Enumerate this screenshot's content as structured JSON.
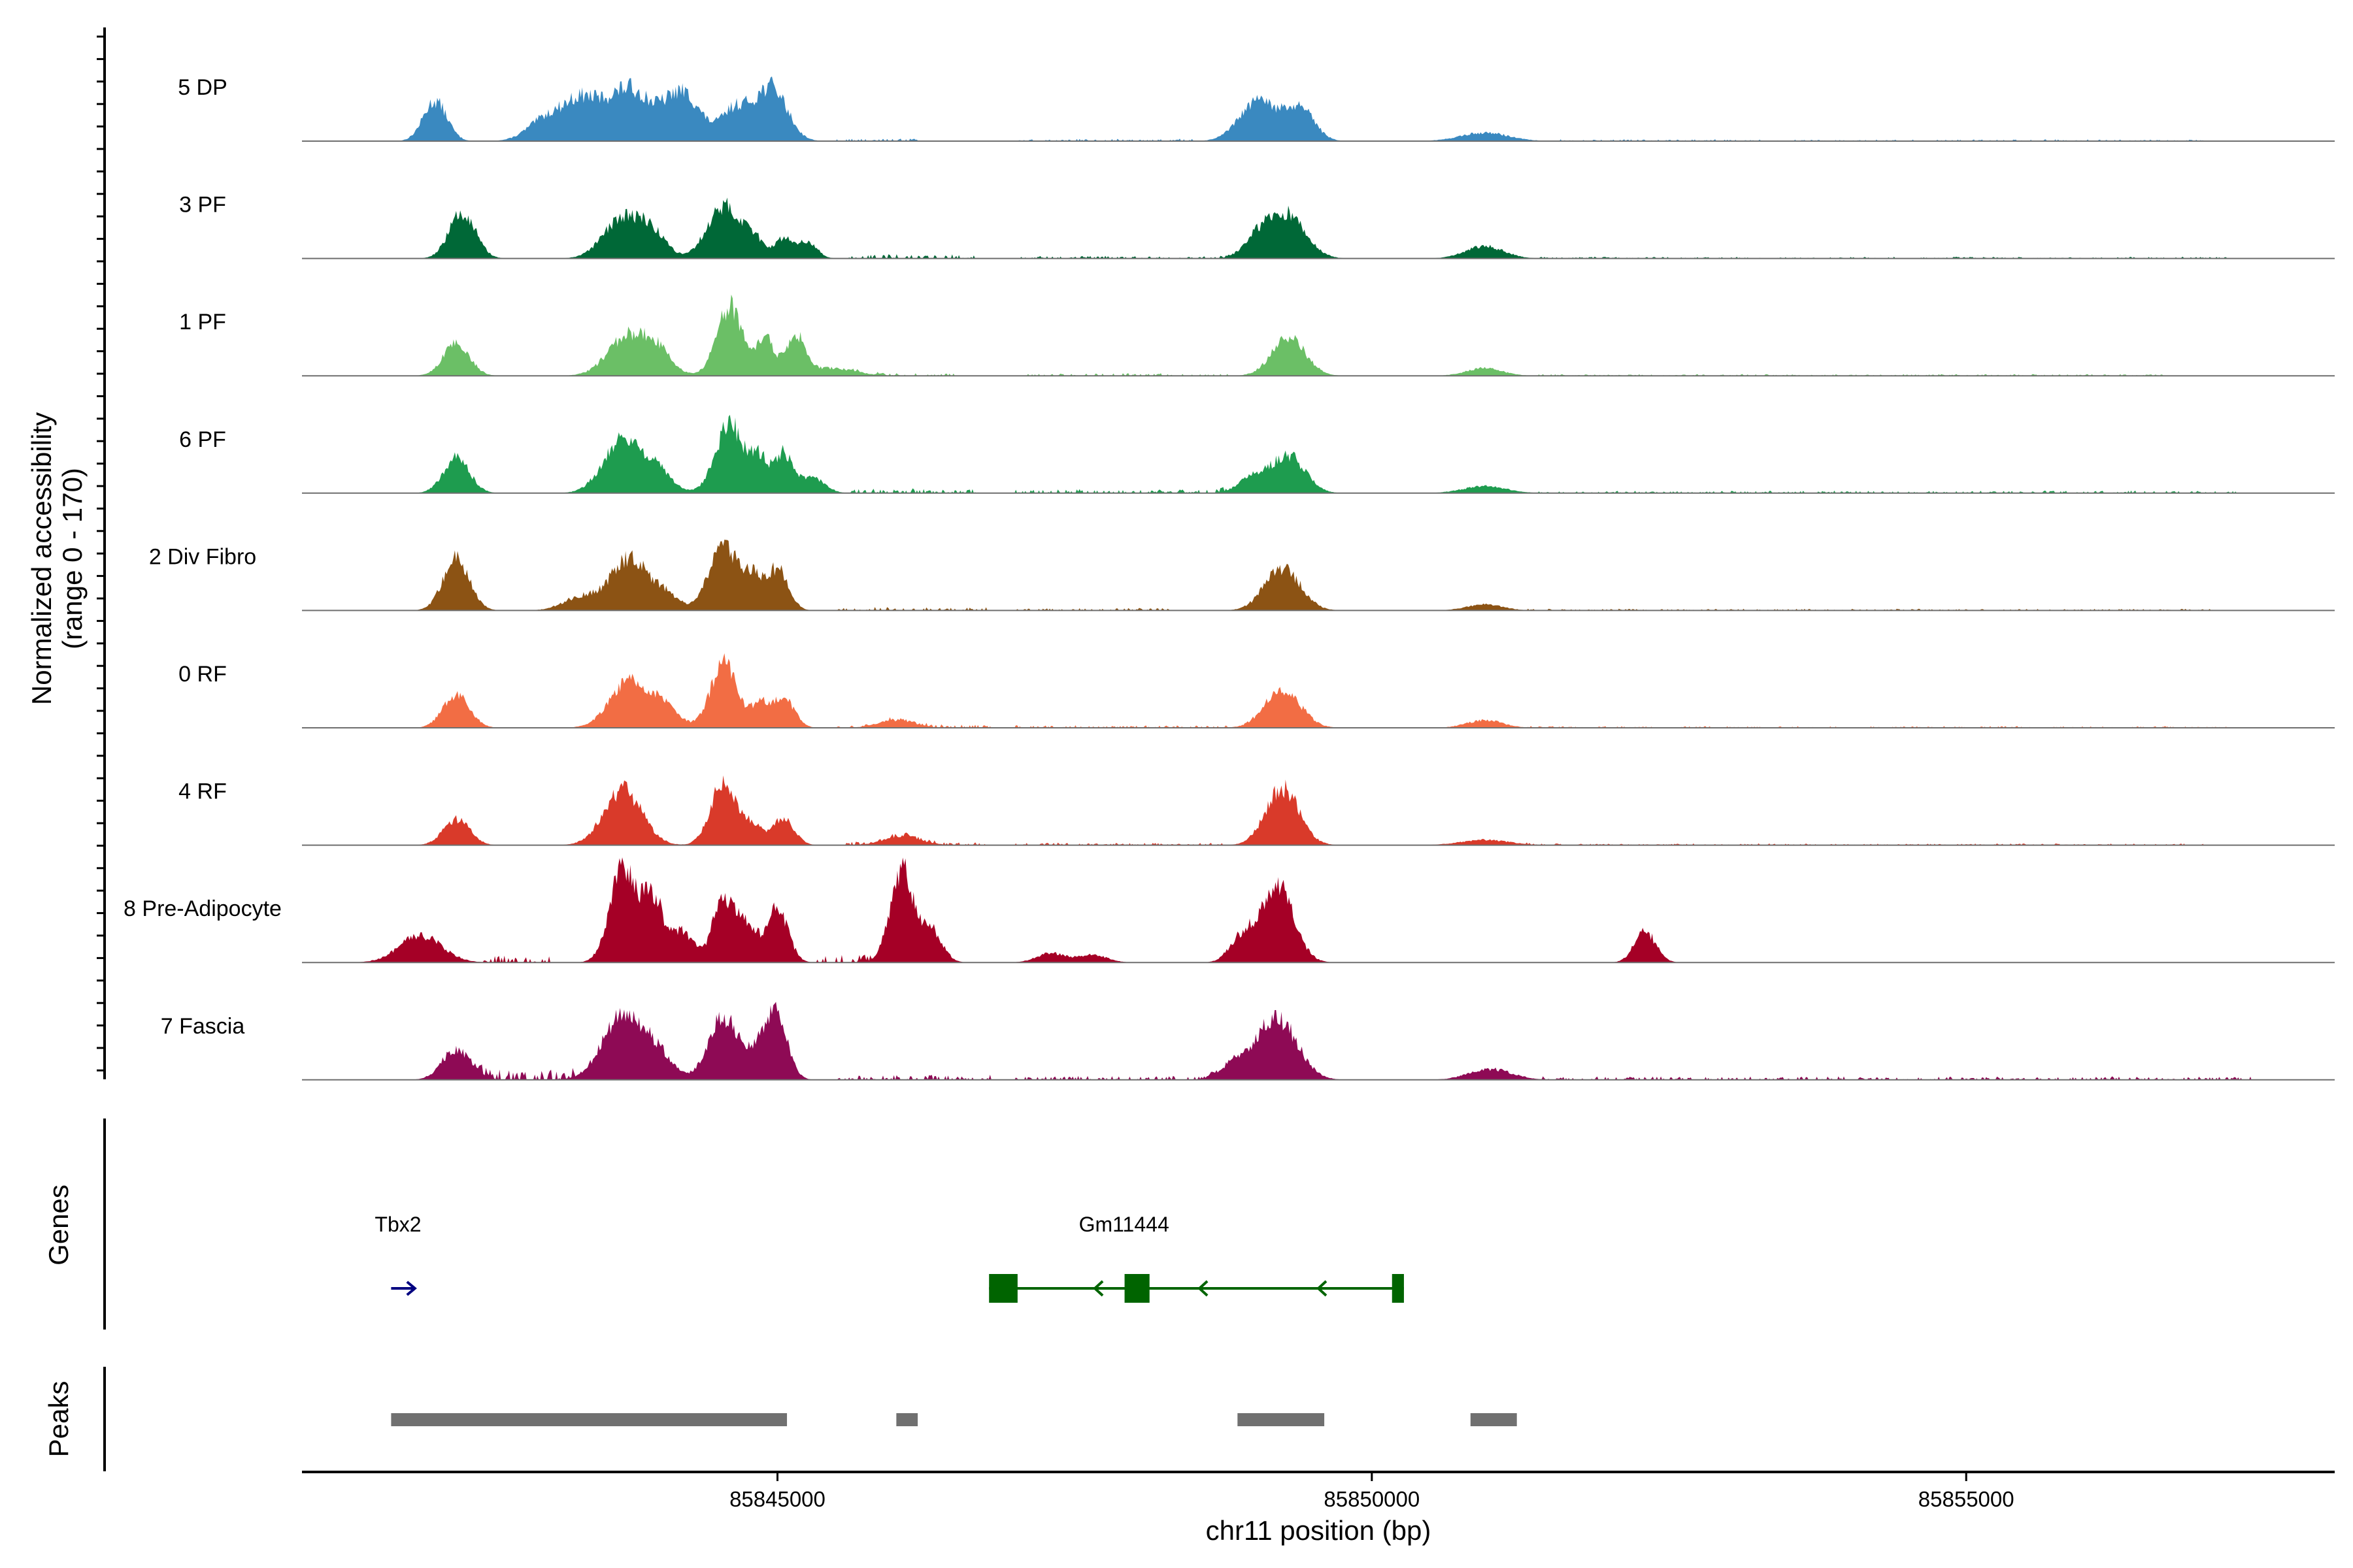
{
  "chart_data": {
    "type": "area",
    "title": "",
    "ylabel": "Normalized accessibility",
    "ylabel_sub": "(range 0 - 170)",
    "y_range": [
      0,
      170
    ],
    "xlabel": "chr11 position (bp)",
    "x_range": [
      85841000,
      85858100
    ],
    "x_ticks": [
      {
        "value": 85845000,
        "label": "85845000"
      },
      {
        "value": 85850000,
        "label": "85850000"
      },
      {
        "value": 85855000,
        "label": "85855000"
      }
    ],
    "tracks": [
      {
        "name": "5 DP",
        "color": "#3A89C0",
        "peaks": [
          [
            85842120,
            52,
            100
          ],
          [
            85843050,
            28,
            150
          ],
          [
            85843350,
            50,
            150
          ],
          [
            85843750,
            68,
            180
          ],
          [
            85844200,
            62,
            150
          ],
          [
            85844650,
            42,
            120
          ],
          [
            85844950,
            70,
            130
          ],
          [
            85849050,
            52,
            160
          ],
          [
            85849400,
            40,
            120
          ],
          [
            85850950,
            11,
            200
          ]
        ],
        "noise": [
          [
            85845500,
            85846200,
            3
          ],
          [
            85847000,
            85848500,
            3
          ],
          [
            85851500,
            85857000,
            2
          ]
        ]
      },
      {
        "name": "3 PF",
        "color": "#006837",
        "peaks": [
          [
            85842350,
            60,
            110
          ],
          [
            85843700,
            52,
            160
          ],
          [
            85843950,
            28,
            120
          ],
          [
            85844550,
            68,
            140
          ],
          [
            85844800,
            22,
            80
          ],
          [
            85845050,
            25,
            80
          ],
          [
            85845250,
            22,
            80
          ],
          [
            85849300,
            55,
            150
          ],
          [
            85849050,
            28,
            120
          ],
          [
            85850950,
            16,
            160
          ]
        ],
        "noise": [
          [
            85845600,
            85846700,
            5
          ],
          [
            85847000,
            85848800,
            3
          ],
          [
            85851400,
            85857200,
            2
          ]
        ]
      },
      {
        "name": "1 PF",
        "color": "#6BBF66",
        "peaks": [
          [
            85842300,
            42,
            110
          ],
          [
            85843750,
            52,
            170
          ],
          [
            85844000,
            25,
            120
          ],
          [
            85844600,
            90,
            110
          ],
          [
            85844900,
            48,
            70
          ],
          [
            85845150,
            52,
            80
          ],
          [
            85845450,
            10,
            200
          ],
          [
            85849300,
            50,
            140
          ],
          [
            85850950,
            10,
            150
          ]
        ],
        "noise": [
          [
            85845600,
            85846500,
            3
          ],
          [
            85847100,
            85848800,
            3
          ],
          [
            85851400,
            85856700,
            2
          ]
        ]
      },
      {
        "name": "6 PF",
        "color": "#1E9C4F",
        "peaks": [
          [
            85842300,
            46,
            110
          ],
          [
            85843700,
            72,
            160
          ],
          [
            85844000,
            25,
            120
          ],
          [
            85844600,
            90,
            120
          ],
          [
            85844850,
            40,
            70
          ],
          [
            85845050,
            52,
            80
          ],
          [
            85845300,
            20,
            100
          ],
          [
            85849300,
            48,
            140
          ],
          [
            85849000,
            20,
            120
          ],
          [
            85850950,
            9,
            180
          ]
        ],
        "noise": [
          [
            85845600,
            85846700,
            6
          ],
          [
            85847000,
            85848800,
            5
          ],
          [
            85851400,
            85857300,
            3
          ]
        ]
      },
      {
        "name": "2 Div Fibro",
        "color": "#8C5314",
        "peaks": [
          [
            85842300,
            68,
            110
          ],
          [
            85843750,
            68,
            150
          ],
          [
            85844050,
            20,
            120
          ],
          [
            85844550,
            88,
            120
          ],
          [
            85844800,
            38,
            70
          ],
          [
            85845000,
            55,
            90
          ],
          [
            85843350,
            18,
            150
          ],
          [
            85849250,
            55,
            150
          ],
          [
            85850950,
            8,
            150
          ]
        ],
        "noise": [
          [
            85845500,
            85846800,
            4
          ],
          [
            85847000,
            85848300,
            3
          ],
          [
            85851300,
            85857100,
            2
          ]
        ]
      },
      {
        "name": "0 RF",
        "color": "#F26D44",
        "peaks": [
          [
            85842300,
            44,
            110
          ],
          [
            85843750,
            62,
            160
          ],
          [
            85844050,
            25,
            120
          ],
          [
            85844550,
            85,
            110
          ],
          [
            85844850,
            30,
            70
          ],
          [
            85845050,
            40,
            90
          ],
          [
            85846000,
            10,
            150
          ],
          [
            85849250,
            50,
            150
          ],
          [
            85850950,
            10,
            150
          ]
        ],
        "noise": [
          [
            85845500,
            85846800,
            4
          ],
          [
            85847000,
            85848800,
            3
          ],
          [
            85851300,
            85857200,
            2
          ]
        ]
      },
      {
        "name": "4 RF",
        "color": "#D93A2A",
        "peaks": [
          [
            85842300,
            34,
            110
          ],
          [
            85843700,
            72,
            160
          ],
          [
            85844550,
            82,
            110
          ],
          [
            85844800,
            24,
            70
          ],
          [
            85845050,
            35,
            90
          ],
          [
            85846050,
            12,
            150
          ],
          [
            85849250,
            74,
            140
          ],
          [
            85850950,
            7,
            200
          ]
        ],
        "noise": [
          [
            85845500,
            85846800,
            4
          ],
          [
            85847000,
            85848800,
            3
          ],
          [
            85851300,
            85857000,
            2
          ]
        ]
      },
      {
        "name": "8 Pre-Adipocyte",
        "color": "#A50026",
        "peaks": [
          [
            85842000,
            35,
            180
          ],
          [
            85843700,
            120,
            110
          ],
          [
            85843950,
            80,
            90
          ],
          [
            85844200,
            40,
            100
          ],
          [
            85844550,
            86,
            90
          ],
          [
            85844750,
            45,
            80
          ],
          [
            85845000,
            70,
            90
          ],
          [
            85846050,
            120,
            100
          ],
          [
            85846300,
            40,
            90
          ],
          [
            85849200,
            100,
            140
          ],
          [
            85848900,
            30,
            100
          ],
          [
            85852300,
            40,
            90
          ],
          [
            85847300,
            12,
            120
          ],
          [
            85847650,
            10,
            120
          ]
        ],
        "noise": [
          [
            85842500,
            85843100,
            10
          ],
          [
            85845300,
            85845800,
            10
          ]
        ]
      },
      {
        "name": "7 Fascia",
        "color": "#8E0A55",
        "peaks": [
          [
            85842300,
            40,
            120
          ],
          [
            85843700,
            82,
            170
          ],
          [
            85844000,
            30,
            120
          ],
          [
            85844550,
            82,
            130
          ],
          [
            85844850,
            35,
            80
          ],
          [
            85845000,
            80,
            90
          ],
          [
            85849200,
            80,
            170
          ],
          [
            85848850,
            20,
            120
          ],
          [
            85851000,
            14,
            180
          ]
        ],
        "noise": [
          [
            85842400,
            85843300,
            12
          ],
          [
            85845500,
            85846800,
            6
          ],
          [
            85847000,
            85848700,
            5
          ],
          [
            85851400,
            85857400,
            4
          ]
        ]
      }
    ],
    "genes_label": "Genes",
    "genes": [
      {
        "name": "Tbx2",
        "strand": "+",
        "start": 85841750,
        "end": 85841950,
        "color": "#000080",
        "exons": []
      },
      {
        "name": "Gm11444",
        "strand": "-",
        "start": 85846780,
        "end": 85850270,
        "color": "#006400",
        "exons": [
          [
            85846780,
            85847020
          ],
          [
            85847920,
            85848130
          ],
          [
            85850170,
            85850270
          ]
        ]
      }
    ],
    "peaks_label": "Peaks",
    "peak_regions": [
      [
        85841750,
        85845080
      ],
      [
        85846000,
        85846180
      ],
      [
        85848870,
        85849600
      ],
      [
        85850830,
        85851220
      ]
    ],
    "peak_color": "#707070"
  }
}
